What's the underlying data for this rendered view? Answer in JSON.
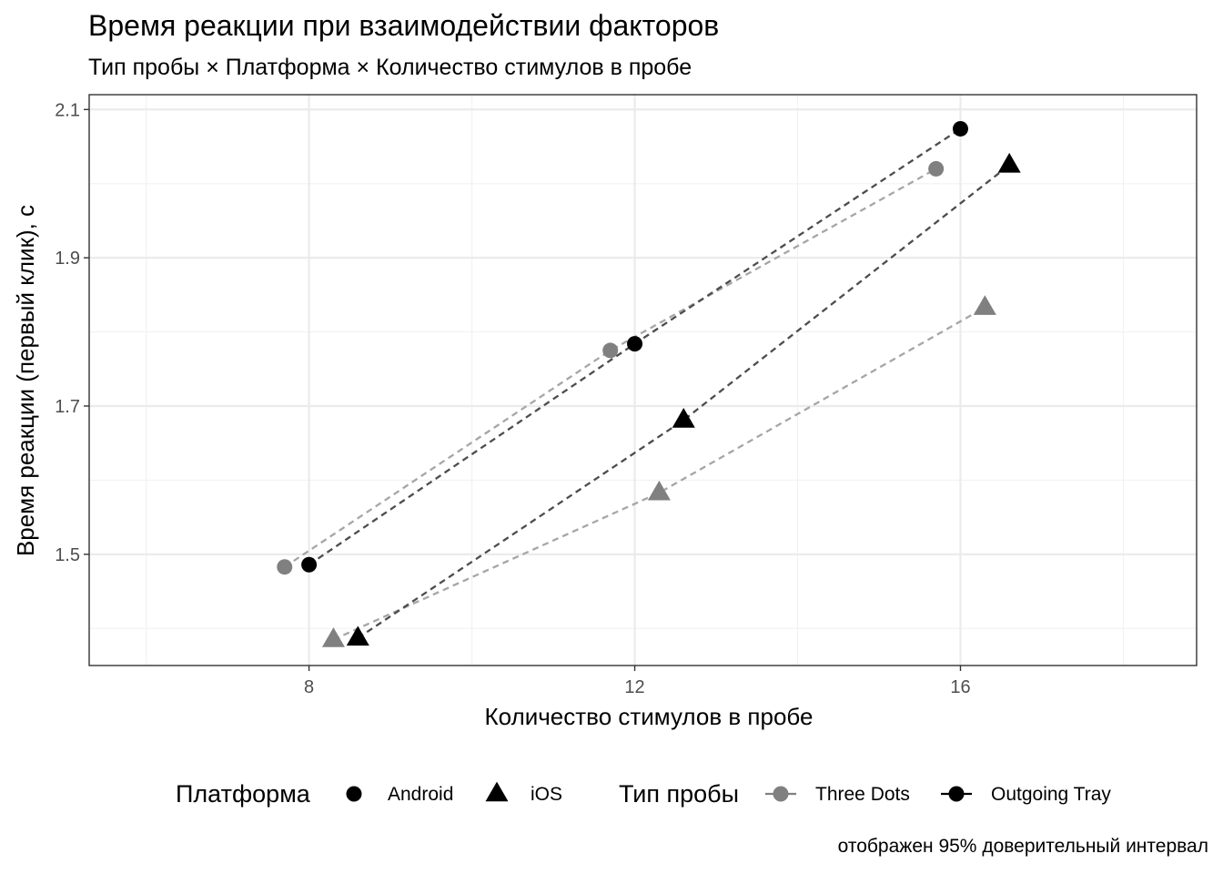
{
  "title": "Время реакции при взаимодействии факторов",
  "subtitle": "Тип пробы × Платформа × Количество стимулов в пробе",
  "caption": "отображен 95% доверительный интервал",
  "chart_data": {
    "type": "line",
    "xlabel": "Количество стимулов в пробе",
    "ylabel": "Время реакции (первый клик), с",
    "xlim": [
      5.3,
      18.9
    ],
    "ylim": [
      1.35,
      2.12
    ],
    "x_ticks": [
      8,
      12,
      16
    ],
    "x_tick_labels": [
      "8",
      "12",
      "16"
    ],
    "y_ticks": [
      1.5,
      1.7,
      1.9,
      2.1
    ],
    "y_tick_labels": [
      "1.5",
      "1.7",
      "1.9",
      "2.1"
    ],
    "y_minor_ticks": [
      1.4,
      1.6,
      1.8,
      2.0
    ],
    "grid": true,
    "legend_position": "bottom",
    "legends": [
      {
        "title": "Платформа",
        "entries": [
          {
            "label": "Android",
            "shape": "circle"
          },
          {
            "label": "iOS",
            "shape": "triangle"
          }
        ]
      },
      {
        "title": "Тип пробы",
        "entries": [
          {
            "label": "Three Dots",
            "color": "#808080"
          },
          {
            "label": "Outgoing Tray",
            "color": "#000000"
          }
        ]
      }
    ],
    "series": [
      {
        "type_label": "Three Dots",
        "platform": "Android",
        "shape": "circle",
        "color": "#808080",
        "line_color": "#a6a6a6",
        "x": [
          7.7,
          11.7,
          15.7
        ],
        "y": [
          1.483,
          1.775,
          2.02
        ]
      },
      {
        "type_label": "Outgoing Tray",
        "platform": "Android",
        "shape": "circle",
        "color": "#000000",
        "line_color": "#4d4d4d",
        "x": [
          8,
          12,
          16
        ],
        "y": [
          1.486,
          1.784,
          2.074
        ]
      },
      {
        "type_label": "Three Dots",
        "platform": "iOS",
        "shape": "triangle",
        "color": "#808080",
        "line_color": "#a6a6a6",
        "x": [
          8.3,
          12.3,
          16.3
        ],
        "y": [
          1.385,
          1.583,
          1.833
        ]
      },
      {
        "type_label": "Outgoing Tray",
        "platform": "iOS",
        "shape": "triangle",
        "color": "#000000",
        "line_color": "#4d4d4d",
        "x": [
          8.6,
          12.6,
          16.6
        ],
        "y": [
          1.387,
          1.681,
          2.025
        ]
      }
    ]
  }
}
